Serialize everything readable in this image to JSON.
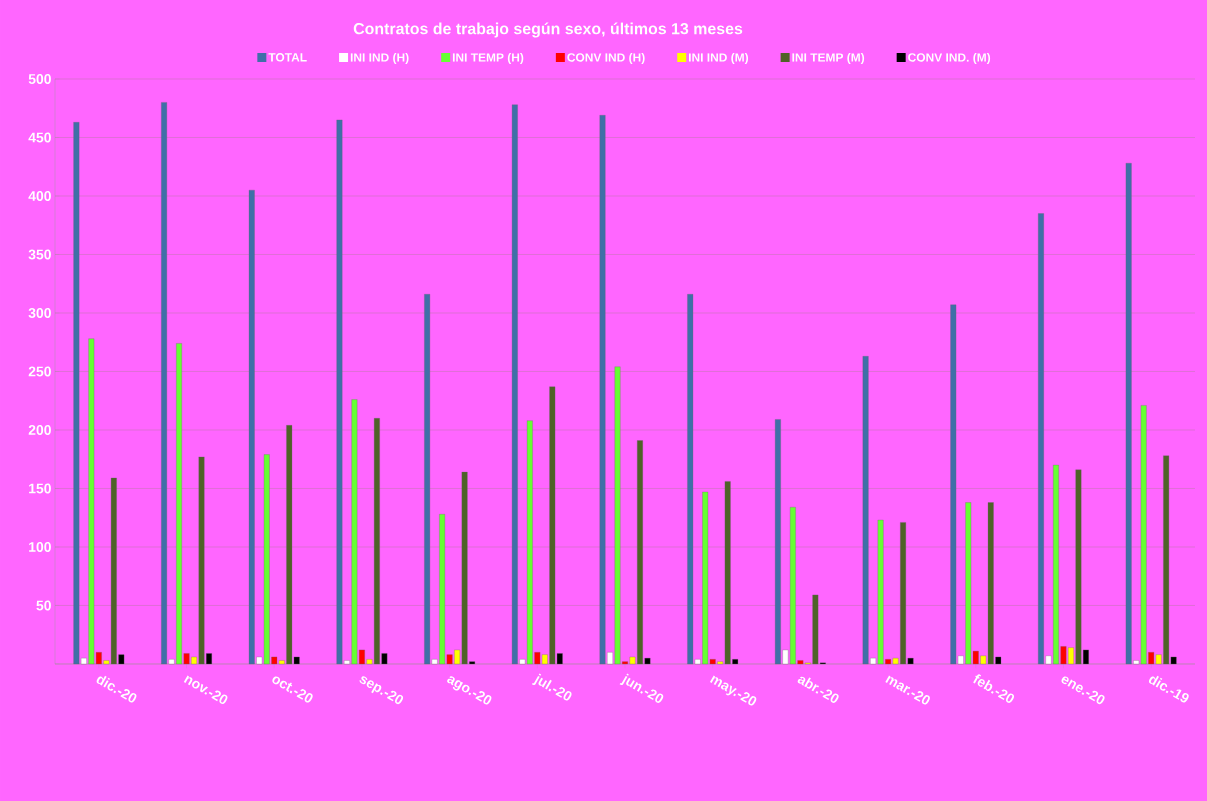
{
  "chart_data": {
    "type": "bar",
    "title": "Contratos de trabajo según sexo, últimos 13 meses",
    "categories": [
      "dic.-20",
      "nov.-20",
      "oct.-20",
      "sep.-20",
      "ago.-20",
      "jul.-20",
      "jun.-20",
      "may.-20",
      "abr.-20",
      "mar.-20",
      "feb.-20",
      "ene.-20",
      "dic.-19"
    ],
    "series": [
      {
        "name": "TOTAL",
        "color": "#3f6fa8",
        "values": [
          463,
          480,
          405,
          465,
          316,
          478,
          469,
          316,
          209,
          263,
          307,
          385,
          428
        ]
      },
      {
        "name": "INI IND (H)",
        "color": "#ffffff",
        "values": [
          5,
          4,
          6,
          3,
          4,
          4,
          10,
          4,
          12,
          5,
          7,
          7,
          3
        ]
      },
      {
        "name": "INI TEMP (H)",
        "color": "#66ff33",
        "values": [
          278,
          274,
          179,
          226,
          128,
          208,
          254,
          147,
          134,
          123,
          138,
          170,
          221
        ]
      },
      {
        "name": "CONV IND (H)",
        "color": "#ff0000",
        "values": [
          10,
          9,
          6,
          12,
          8,
          10,
          2,
          4,
          3,
          4,
          11,
          15,
          10
        ]
      },
      {
        "name": "INI IND (M)",
        "color": "#ffff00",
        "values": [
          3,
          6,
          3,
          4,
          12,
          8,
          6,
          2,
          1,
          5,
          7,
          14,
          8
        ]
      },
      {
        "name": "INI TEMP  (M)",
        "color": "#4f6228",
        "values": [
          159,
          177,
          204,
          210,
          164,
          237,
          191,
          156,
          59,
          121,
          138,
          166,
          178
        ]
      },
      {
        "name": "CONV IND.  (M)",
        "color": "#000000",
        "values": [
          8,
          9,
          6,
          9,
          2,
          9,
          5,
          4,
          1,
          5,
          6,
          12,
          6
        ]
      }
    ],
    "ylim": [
      0,
      500
    ],
    "yticks": [
      {
        "value": 0,
        "label": null
      },
      50,
      100,
      150,
      200,
      250,
      300,
      350,
      400,
      450,
      500
    ],
    "grid": "y",
    "legend": "top"
  }
}
